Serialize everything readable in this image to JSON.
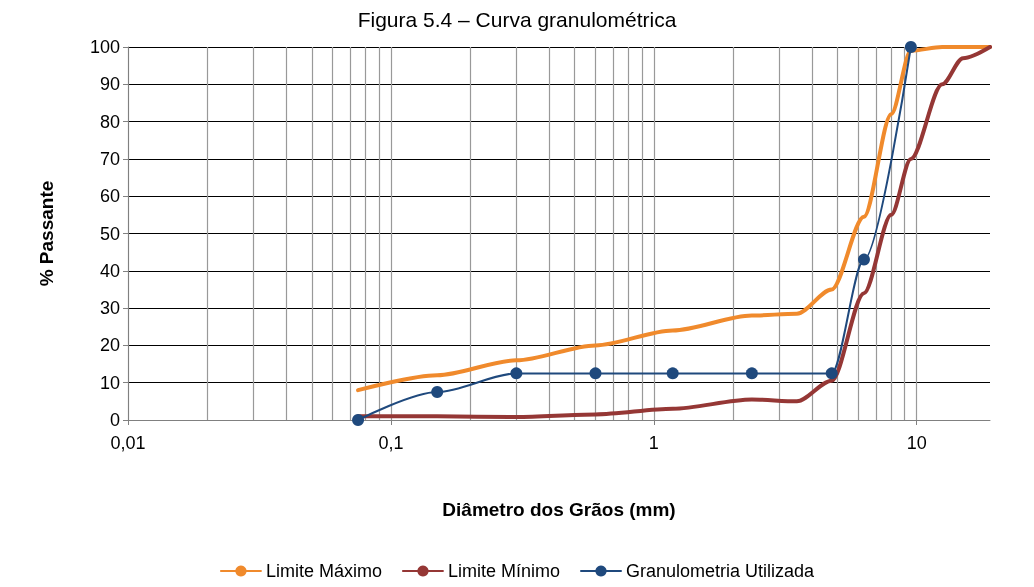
{
  "chart_data": {
    "type": "line",
    "title": "Figura 5.4 – Curva granulométrica",
    "xlabel": "Diâmetro dos Grãos (mm)",
    "ylabel": "% Passante",
    "log": "x",
    "xlim": [
      0.01,
      19
    ],
    "xticks": [
      {
        "value": 0.01,
        "label": "0,01"
      },
      {
        "value": 0.1,
        "label": "0,1"
      },
      1,
      10
    ],
    "ylim": [
      0,
      100
    ],
    "yticks": [
      0,
      10,
      20,
      30,
      40,
      50,
      60,
      70,
      80,
      90,
      100
    ],
    "grid": true,
    "legend": "bottom",
    "line_style": "solid",
    "series": [
      {
        "name": "Limite Máximo",
        "color": "#f08a2c",
        "marker": "none",
        "x": [
          0.075,
          0.15,
          0.3,
          0.6,
          1.18,
          2.36,
          3.5,
          4.75,
          6.3,
          8,
          9.5,
          12.5,
          19
        ],
        "values": [
          8,
          12,
          16,
          20,
          24,
          28,
          28.5,
          35,
          54.5,
          82,
          99,
          100,
          100
        ]
      },
      {
        "name": "Limite Mínimo",
        "color": "#953735",
        "marker": "none",
        "x": [
          0.075,
          0.15,
          0.3,
          0.6,
          1.18,
          2.36,
          3.5,
          4.75,
          6.3,
          8,
          9.5,
          12.5,
          15,
          19
        ],
        "values": [
          1,
          1,
          0.8,
          1.5,
          3,
          5.5,
          5,
          10.5,
          34,
          55,
          70,
          90,
          97,
          100
        ]
      },
      {
        "name": "Granulometria Utilizada",
        "color": "#1f497d",
        "marker": "circle",
        "x": [
          0.075,
          0.15,
          0.3,
          0.6,
          1.18,
          2.36,
          4.75,
          6.3,
          9.5
        ],
        "values": [
          0,
          7.5,
          12.5,
          12.5,
          12.5,
          12.5,
          12.5,
          43,
          100
        ]
      }
    ]
  }
}
